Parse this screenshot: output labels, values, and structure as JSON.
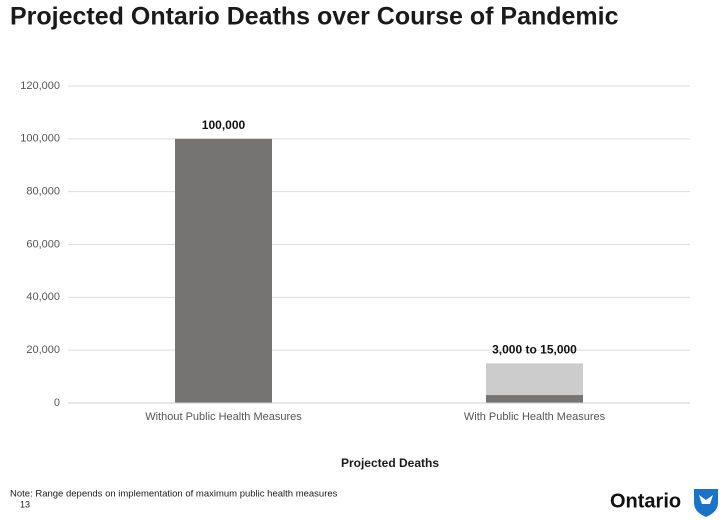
{
  "chart_data": {
    "type": "bar",
    "title": "Projected Ontario Deaths over Course of Pandemic",
    "x_label": "Projected Deaths",
    "categories": [
      "Without Public Health Measures",
      "With Public Health Measures"
    ],
    "series": [
      {
        "color": "#767373",
        "values": [
          100000,
          3000
        ],
        "value_labels": [
          "100,000",
          null
        ]
      },
      {
        "color": "#cccccc",
        "values": [
          null,
          15000
        ],
        "value_labels": [
          null,
          "3,000 to 15,000"
        ]
      }
    ],
    "ylim": [
      0,
      120000
    ],
    "yticks": [
      0,
      {
        "value": 20000,
        "label": "20,000"
      },
      {
        "value": 40000,
        "label": "40,000"
      },
      {
        "value": 60000,
        "label": "60,000"
      },
      {
        "value": 80000,
        "label": "80,000"
      },
      {
        "value": 100000,
        "label": "100,000"
      },
      {
        "value": 120000,
        "label": "120,000"
      }
    ],
    "grid": true
  },
  "note": "Note: Range depends on implementation of maximum public health measures",
  "page_number": "13",
  "logo": "Ontario"
}
